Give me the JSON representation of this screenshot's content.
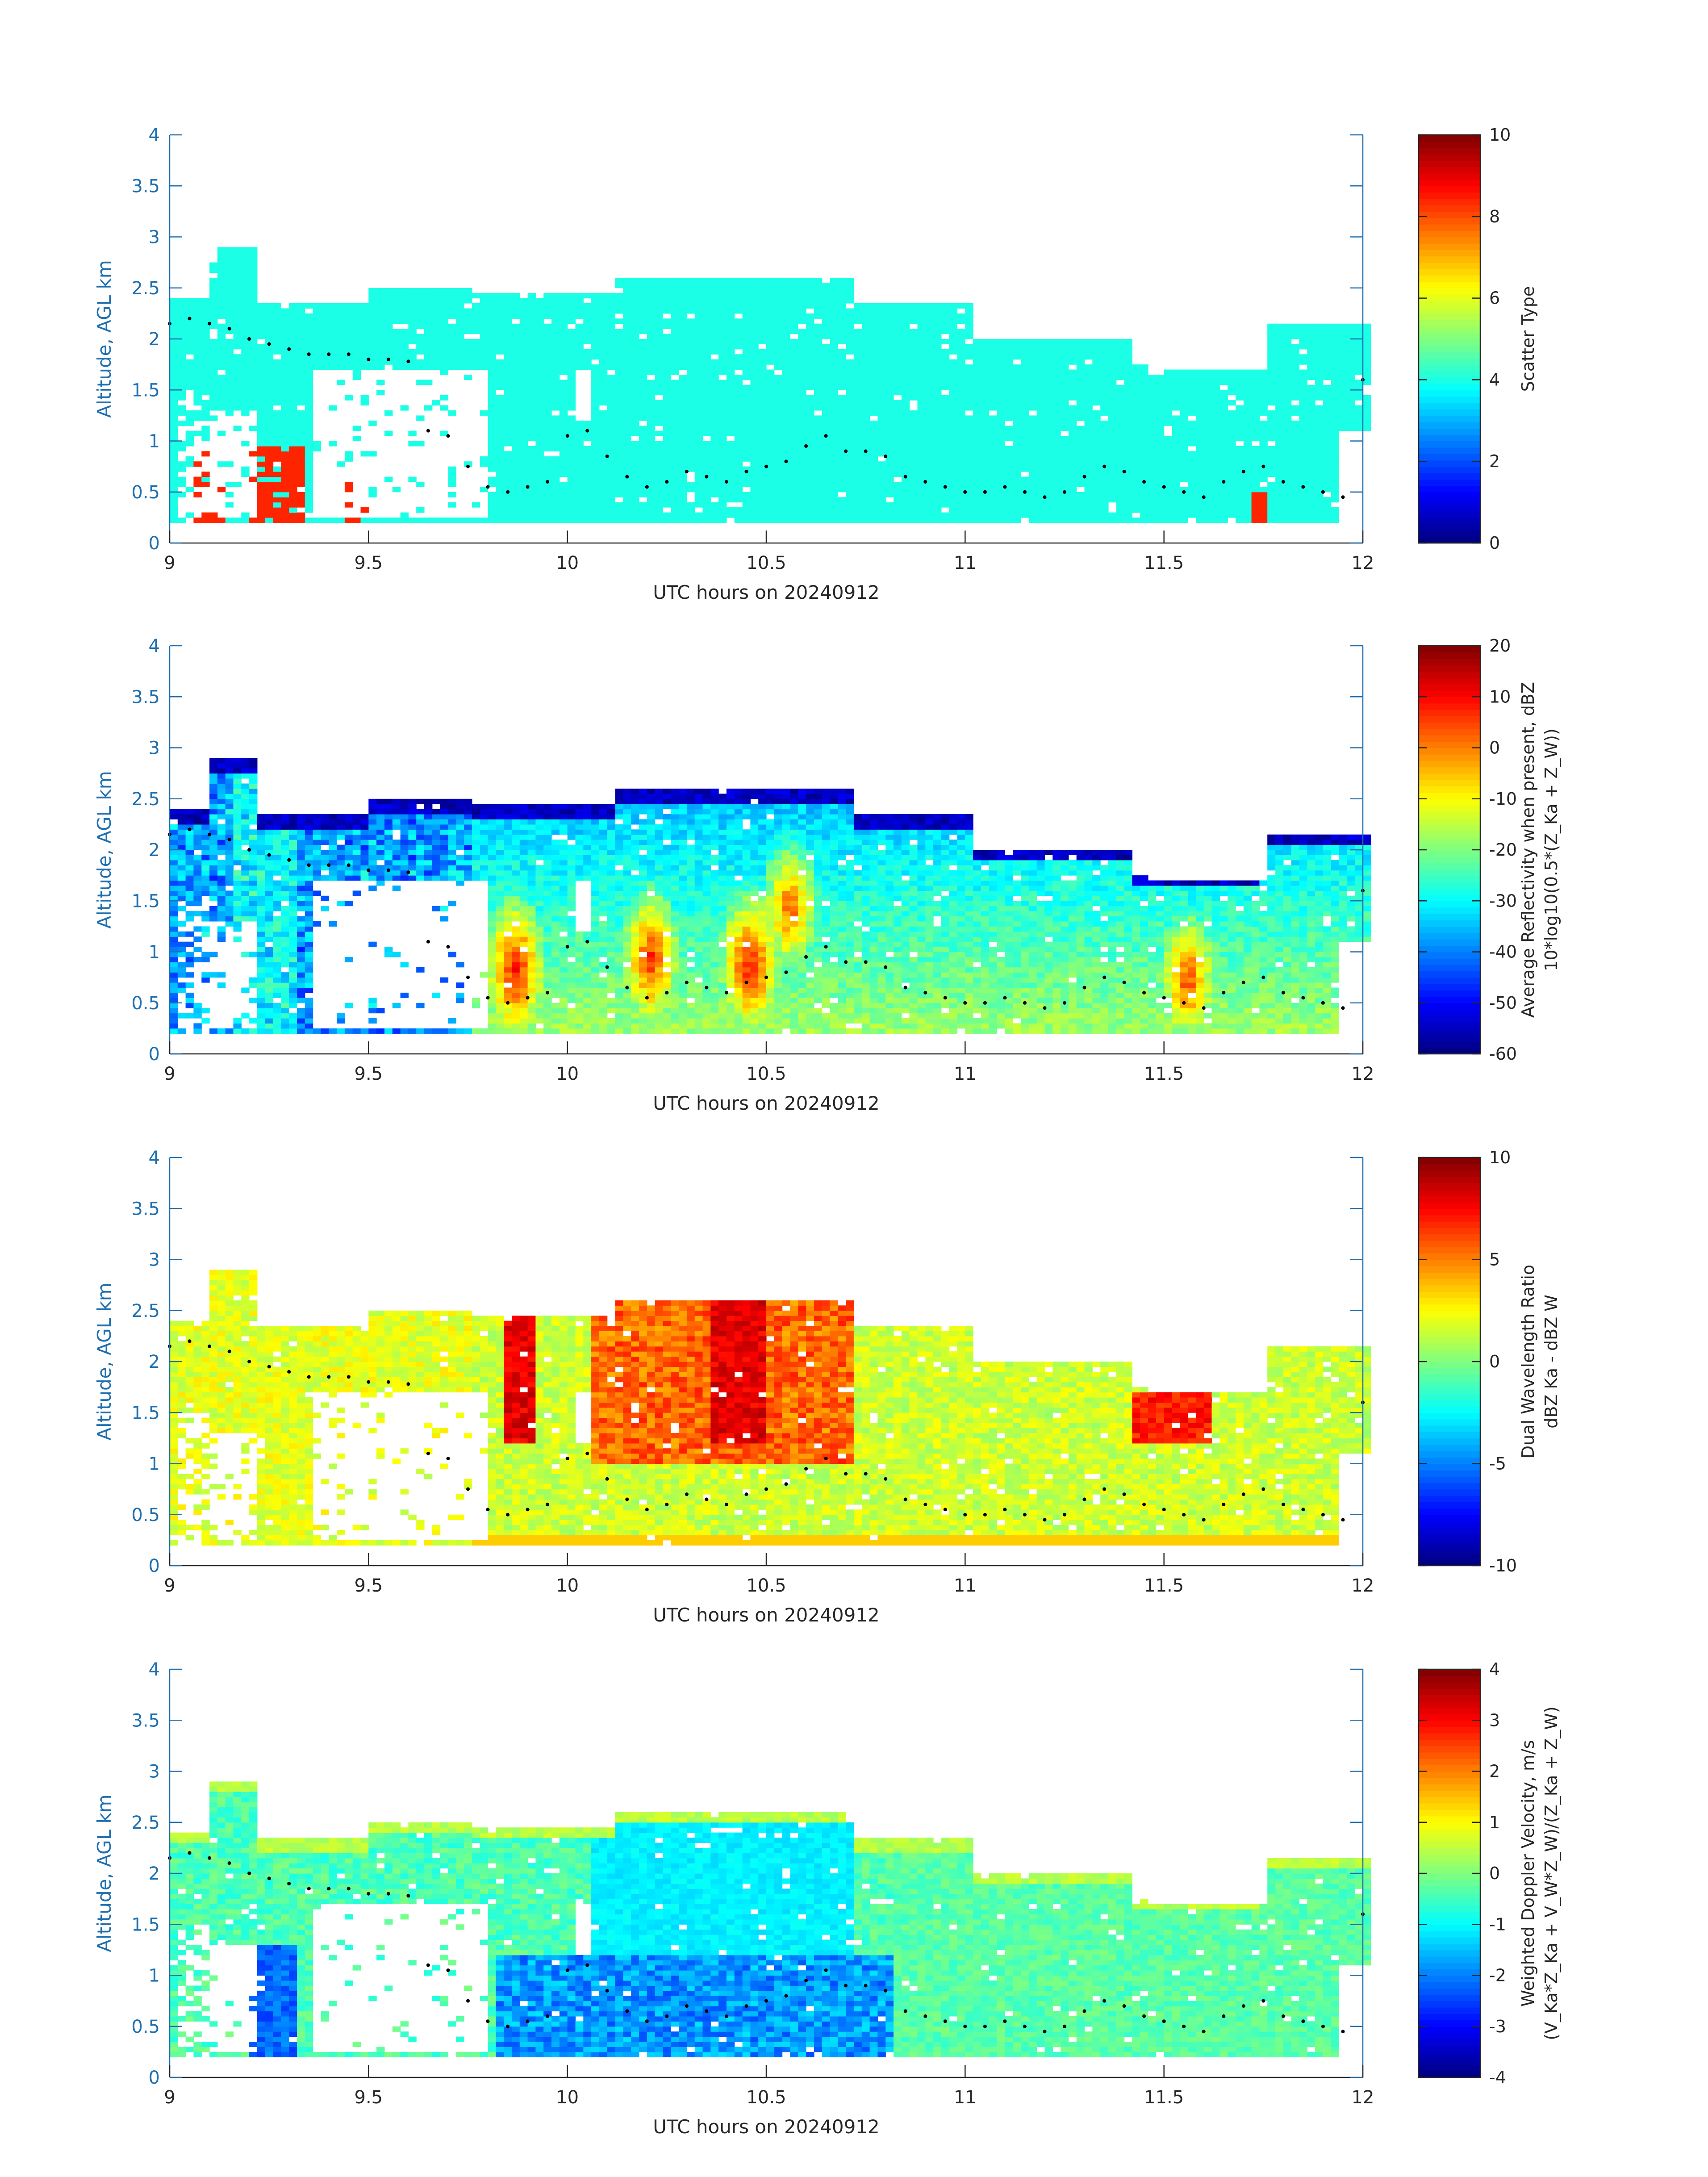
{
  "chart_data": [
    {
      "type": "heatmap",
      "id": "scatter",
      "xlabel": "UTC hours on 20240912",
      "ylabel": "Altitude, AGL km",
      "xlim": [
        9,
        12
      ],
      "ylim": [
        0,
        4
      ],
      "xticks": [
        "9",
        "9.5",
        "10",
        "10.5",
        "11",
        "11.5",
        "12"
      ],
      "yticks": [
        "0",
        "0.5",
        "1",
        "1.5",
        "2",
        "2.5",
        "3",
        "3.5",
        "4"
      ],
      "colorbar": {
        "label_lines": [
          "Scatter Type"
        ],
        "range": [
          0,
          10
        ],
        "ticks": [
          "0",
          "2",
          "4",
          "6",
          "8",
          "10"
        ]
      },
      "values_note": "field mostly scatter type ~4 (cyan) with isolated type ~8 (orange-red) patches near 9.1-9.35 h below 1 km"
    },
    {
      "type": "heatmap",
      "id": "reflectivity",
      "xlabel": "UTC hours on 20240912",
      "ylabel": "Altitude, AGL km",
      "xlim": [
        9,
        12
      ],
      "ylim": [
        0,
        4
      ],
      "xticks": [
        "9",
        "9.5",
        "10",
        "10.5",
        "11",
        "11.5",
        "12"
      ],
      "yticks": [
        "0",
        "0.5",
        "1",
        "1.5",
        "2",
        "2.5",
        "3",
        "3.5",
        "4"
      ],
      "colorbar": {
        "label_lines": [
          "Average Reflectivity when present, dBZ",
          "10*log10(0.5*(Z_Ka + Z_W))"
        ],
        "range": [
          -60,
          20
        ],
        "ticks": [
          "-60",
          "-50",
          "-40",
          "-30",
          "-20",
          "-10",
          "0",
          "10",
          "20"
        ]
      },
      "cores": [
        {
          "t": 9.86,
          "alt": 0.8,
          "dbz": 10
        },
        {
          "t": 10.2,
          "alt": 0.9,
          "dbz": 8
        },
        {
          "t": 10.45,
          "alt": 0.85,
          "dbz": 10
        },
        {
          "t": 10.55,
          "alt": 1.4,
          "dbz": 4
        },
        {
          "t": 11.55,
          "alt": 0.7,
          "dbz": 6
        }
      ]
    },
    {
      "type": "heatmap",
      "id": "dwr",
      "xlabel": "UTC hours on 20240912",
      "ylabel": "Altitude, AGL km",
      "xlim": [
        9,
        12
      ],
      "ylim": [
        0,
        4
      ],
      "xticks": [
        "9",
        "9.5",
        "10",
        "10.5",
        "11",
        "11.5",
        "12"
      ],
      "yticks": [
        "0",
        "0.5",
        "1",
        "1.5",
        "2",
        "2.5",
        "3",
        "3.5",
        "4"
      ],
      "colorbar": {
        "label_lines": [
          "Dual Wavelength Ratio",
          "dBZ Ka - dBZ W"
        ],
        "range": [
          -10,
          10
        ],
        "ticks": [
          "-10",
          "-5",
          "0",
          "5",
          "10"
        ]
      }
    },
    {
      "type": "heatmap",
      "id": "doppler",
      "xlabel": "UTC hours on 20240912",
      "ylabel": "Altitude, AGL km",
      "xlim": [
        9,
        12
      ],
      "ylim": [
        0,
        4
      ],
      "xticks": [
        "9",
        "9.5",
        "10",
        "10.5",
        "11",
        "11.5",
        "12"
      ],
      "yticks": [
        "0",
        "0.5",
        "1",
        "1.5",
        "2",
        "2.5",
        "3",
        "3.5",
        "4"
      ],
      "colorbar": {
        "label_lines": [
          "Weighted Doppler Velocity, m/s",
          "(V_Ka*Z_Ka + V_W*Z_W)/(Z_Ka + Z_W)"
        ],
        "range": [
          -4,
          4
        ],
        "ticks": [
          "-4",
          "-3",
          "-2",
          "-1",
          "0",
          "1",
          "2",
          "3",
          "4"
        ]
      }
    }
  ],
  "dotted_height_series": {
    "t": [
      9.0,
      9.05,
      9.1,
      9.15,
      9.2,
      9.25,
      9.3,
      9.35,
      9.4,
      9.45,
      9.5,
      9.55,
      9.6,
      9.65,
      9.7,
      9.75,
      9.8,
      9.85,
      9.9,
      9.95,
      10.0,
      10.05,
      10.1,
      10.15,
      10.2,
      10.25,
      10.3,
      10.35,
      10.4,
      10.45,
      10.5,
      10.55,
      10.6,
      10.65,
      10.7,
      10.75,
      10.8,
      10.85,
      10.9,
      10.95,
      11.0,
      11.05,
      11.1,
      11.15,
      11.2,
      11.25,
      11.3,
      11.35,
      11.4,
      11.45,
      11.5,
      11.55,
      11.6,
      11.65,
      11.7,
      11.75,
      11.8,
      11.85,
      11.9,
      11.95,
      12.0
    ],
    "alt": [
      2.15,
      2.2,
      2.15,
      2.1,
      2.0,
      1.95,
      1.9,
      1.85,
      1.85,
      1.85,
      1.8,
      1.8,
      1.78,
      1.1,
      1.05,
      0.75,
      0.55,
      0.5,
      0.55,
      0.6,
      1.05,
      1.1,
      0.85,
      0.65,
      0.55,
      0.6,
      0.7,
      0.65,
      0.6,
      0.7,
      0.75,
      0.8,
      0.95,
      1.05,
      0.9,
      0.9,
      0.85,
      0.65,
      0.6,
      0.55,
      0.5,
      0.5,
      0.55,
      0.5,
      0.45,
      0.5,
      0.65,
      0.75,
      0.7,
      0.6,
      0.55,
      0.5,
      0.45,
      0.6,
      0.7,
      0.75,
      0.6,
      0.55,
      0.5,
      0.45,
      1.6
    ]
  }
}
